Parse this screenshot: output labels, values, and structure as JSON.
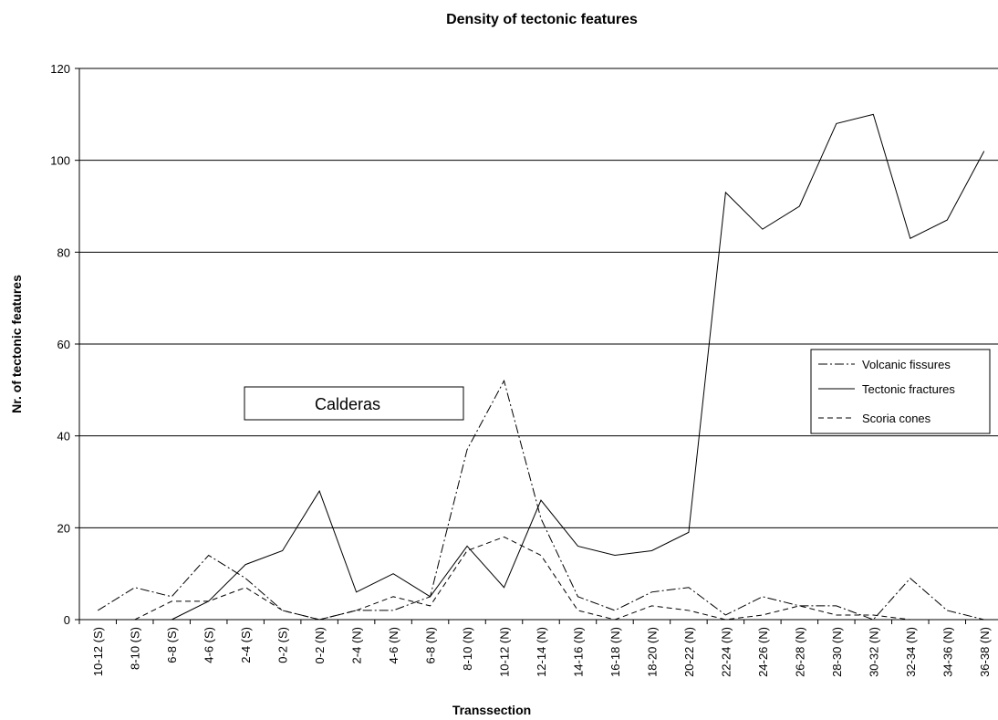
{
  "chart_data": {
    "type": "line",
    "title": "Density of tectonic features",
    "xlabel": "Transsection",
    "ylabel": "Nr. of tectonic features",
    "ylim": [
      0,
      120
    ],
    "yticks": [
      0,
      20,
      40,
      60,
      80,
      100,
      120
    ],
    "grid": true,
    "legend_position": "right",
    "categories": [
      "10-12 (S)",
      "8-10 (S)",
      "6-8 (S)",
      "4-6 (S)",
      "2-4 (S)",
      "0-2 (S)",
      "0-2 (N)",
      "2-4 (N)",
      "4-6 (N)",
      "6-8 (N)",
      "8-10 (N)",
      "10-12 (N)",
      "12-14 (N)",
      "14-16 (N)",
      "16-18 (N)",
      "18-20 (N)",
      "20-22 (N)",
      "22-24 (N)",
      "24-26 (N)",
      "26-28 (N)",
      "28-30 (N)",
      "30-32 (N)",
      "32-34 (N)",
      "34-36 (N)",
      "36-38 (N)"
    ],
    "series": [
      {
        "name": "Volcanic fissures",
        "style": "dash-dot",
        "values": [
          2,
          7,
          5,
          14,
          9,
          2,
          0,
          2,
          2,
          5,
          37,
          52,
          22,
          5,
          2,
          6,
          7,
          1,
          5,
          3,
          3,
          0,
          9,
          2,
          0
        ]
      },
      {
        "name": "Tectonic fractures",
        "style": "solid",
        "values": [
          null,
          null,
          0,
          4,
          12,
          15,
          28,
          6,
          10,
          5,
          16,
          7,
          26,
          16,
          14,
          15,
          19,
          93,
          85,
          90,
          108,
          110,
          83,
          87,
          102
        ]
      },
      {
        "name": "Scoria cones",
        "style": "dashed",
        "values": [
          null,
          0,
          4,
          4,
          7,
          2,
          0,
          2,
          5,
          3,
          15,
          18,
          14,
          2,
          0,
          3,
          2,
          0,
          1,
          3,
          1,
          1,
          0,
          null,
          null
        ]
      }
    ],
    "annotations": [
      {
        "text": "Calderas"
      }
    ]
  }
}
